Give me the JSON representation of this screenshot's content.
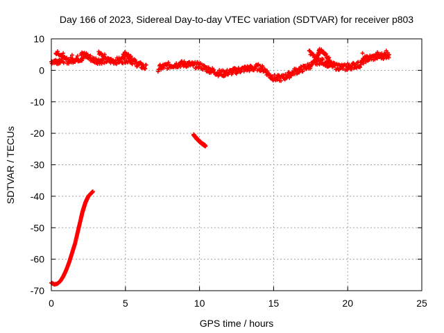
{
  "chart_data": {
    "type": "scatter",
    "title": "Day 166 of 2023, Sidereal Day-to-day VTEC variation (SDTVAR) for receiver p803",
    "xlabel": "GPS time / hours",
    "ylabel": "SDTVAR / TECUs",
    "xlim": [
      0,
      25
    ],
    "ylim": [
      -70,
      10
    ],
    "xticks": [
      0,
      5,
      10,
      15,
      20,
      25
    ],
    "yticks": [
      10,
      0,
      -10,
      -20,
      -30,
      -40,
      -50,
      -60,
      -70
    ],
    "xtick_labels": [
      "0",
      "5",
      "10",
      "15",
      "20",
      "25"
    ],
    "ytick_labels": [
      "10",
      "0",
      "-10",
      "-20",
      "-30",
      "-40",
      "-50",
      "-60",
      "-70"
    ],
    "grid": true,
    "legend": "none",
    "marker_color": "#ff0000",
    "marker": "plus",
    "series": [
      {
        "name": "descending-arc-0-3h",
        "x": [
          0.0,
          0.2,
          0.4,
          0.6,
          0.8,
          1.0,
          1.2,
          1.4,
          1.6,
          1.8,
          2.0,
          2.1,
          2.2,
          2.3,
          2.4,
          2.5,
          2.6,
          2.7,
          2.8
        ],
        "y": [
          -67.5,
          -68.0,
          -67.8,
          -67.0,
          -65.5,
          -63.5,
          -61.0,
          -58.0,
          -55.0,
          -51.0,
          -47.0,
          -45.0,
          -43.5,
          -42.0,
          -41.0,
          -40.0,
          -39.5,
          -39.0,
          -38.5
        ]
      },
      {
        "name": "short-segment-9.7-10.4h",
        "x": [
          9.6,
          9.7,
          9.8,
          9.9,
          10.0,
          10.1,
          10.2,
          10.3,
          10.4
        ],
        "y": [
          -20.5,
          -21.0,
          -21.6,
          -22.1,
          -22.6,
          -23.0,
          -23.4,
          -23.7,
          -24.0
        ],
        "spread": 0.4
      },
      {
        "name": "main-trace",
        "x": [
          0.0,
          0.4,
          0.8,
          1.2,
          1.6,
          2.0,
          2.4,
          2.8,
          3.2,
          3.6,
          4.0,
          4.4,
          4.8,
          5.2,
          5.6,
          6.0,
          6.4,
          7.2,
          7.6,
          8.0,
          8.4,
          8.8,
          9.2,
          9.6,
          10.0,
          10.4,
          10.8,
          11.2,
          11.6,
          12.0,
          12.4,
          12.8,
          13.2,
          13.6,
          14.0,
          14.4,
          14.8,
          15.2,
          15.6,
          16.0,
          16.4,
          16.8,
          17.2,
          17.6,
          18.0,
          18.4,
          18.8,
          19.2,
          19.6,
          20.0,
          20.4,
          20.8,
          21.2,
          21.6,
          22.0,
          22.4,
          22.8
        ],
        "y": [
          2.8,
          3.0,
          3.4,
          3.0,
          3.6,
          3.8,
          4.6,
          3.4,
          3.0,
          3.2,
          3.0,
          3.0,
          3.2,
          3.6,
          2.6,
          1.6,
          0.8,
          0.6,
          1.2,
          1.6,
          1.8,
          2.0,
          2.0,
          1.6,
          1.6,
          0.6,
          0.0,
          -0.8,
          -1.0,
          -0.6,
          -0.2,
          0.2,
          0.6,
          0.6,
          1.0,
          0.2,
          -2.0,
          -2.6,
          -2.4,
          -1.6,
          -0.4,
          0.2,
          1.0,
          1.8,
          3.0,
          2.6,
          1.8,
          1.2,
          1.0,
          0.8,
          1.6,
          1.8,
          3.6,
          4.0,
          4.4,
          4.6,
          5.0
        ],
        "spread": 2.0
      },
      {
        "name": "upper-trace",
        "x": [
          0.3,
          0.8,
          1.4,
          2.0,
          2.4,
          3.2,
          3.6,
          4.8,
          5.0,
          5.4,
          6.0,
          17.4,
          17.9,
          18.1,
          18.4,
          18.8,
          19.4,
          20.0,
          21.0,
          22.0,
          22.6
        ],
        "y": [
          5.6,
          5.0,
          4.8,
          5.2,
          4.8,
          5.4,
          4.6,
          4.6,
          5.4,
          3.8,
          2.2,
          6.0,
          3.6,
          6.6,
          5.2,
          3.4,
          2.4,
          2.0,
          5.0,
          5.8,
          6.2
        ],
        "spread": 1.2
      }
    ]
  }
}
